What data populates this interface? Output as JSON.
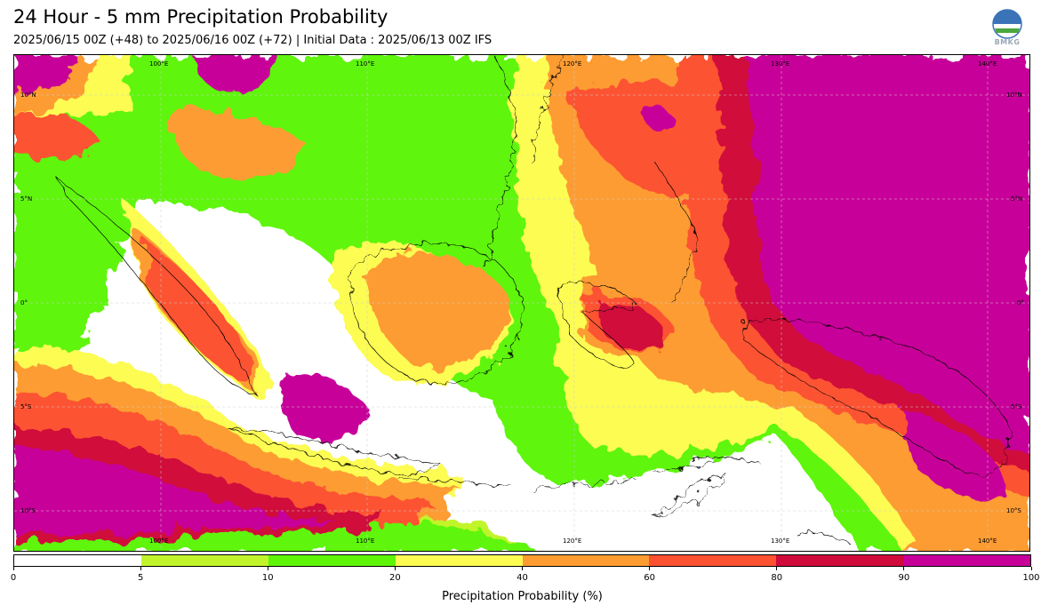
{
  "header": {
    "title": "24 Hour - 5 mm Precipitation Probability",
    "subtitle": "2025/06/15 00Z (+48) to 2025/06/16 00Z (+72) | Initial Data : 2025/06/13 00Z IFS",
    "logo_text": "BMKG"
  },
  "map": {
    "lon_labels": [
      "100°E",
      "110°E",
      "120°E",
      "130°E",
      "140°E"
    ],
    "lat_labels": [
      "10°N",
      "5°N",
      "0°",
      "5°S",
      "10°S"
    ]
  },
  "colorbar": {
    "title": "Precipitation Probability (%)",
    "ticks": [
      "0",
      "5",
      "10",
      "20",
      "40",
      "60",
      "80",
      "90",
      "100"
    ],
    "bins": [
      {
        "from": 0,
        "to": 5,
        "color": "#ffffff"
      },
      {
        "from": 5,
        "to": 10,
        "color": "#c2f42c"
      },
      {
        "from": 10,
        "to": 20,
        "color": "#5ff508"
      },
      {
        "from": 20,
        "to": 40,
        "color": "#fcfc52"
      },
      {
        "from": 40,
        "to": 60,
        "color": "#fd9c30"
      },
      {
        "from": 60,
        "to": 80,
        "color": "#fc5232"
      },
      {
        "from": 80,
        "to": 90,
        "color": "#d00a3a"
      },
      {
        "from": 90,
        "to": 100,
        "color": "#c8009a"
      }
    ]
  }
}
